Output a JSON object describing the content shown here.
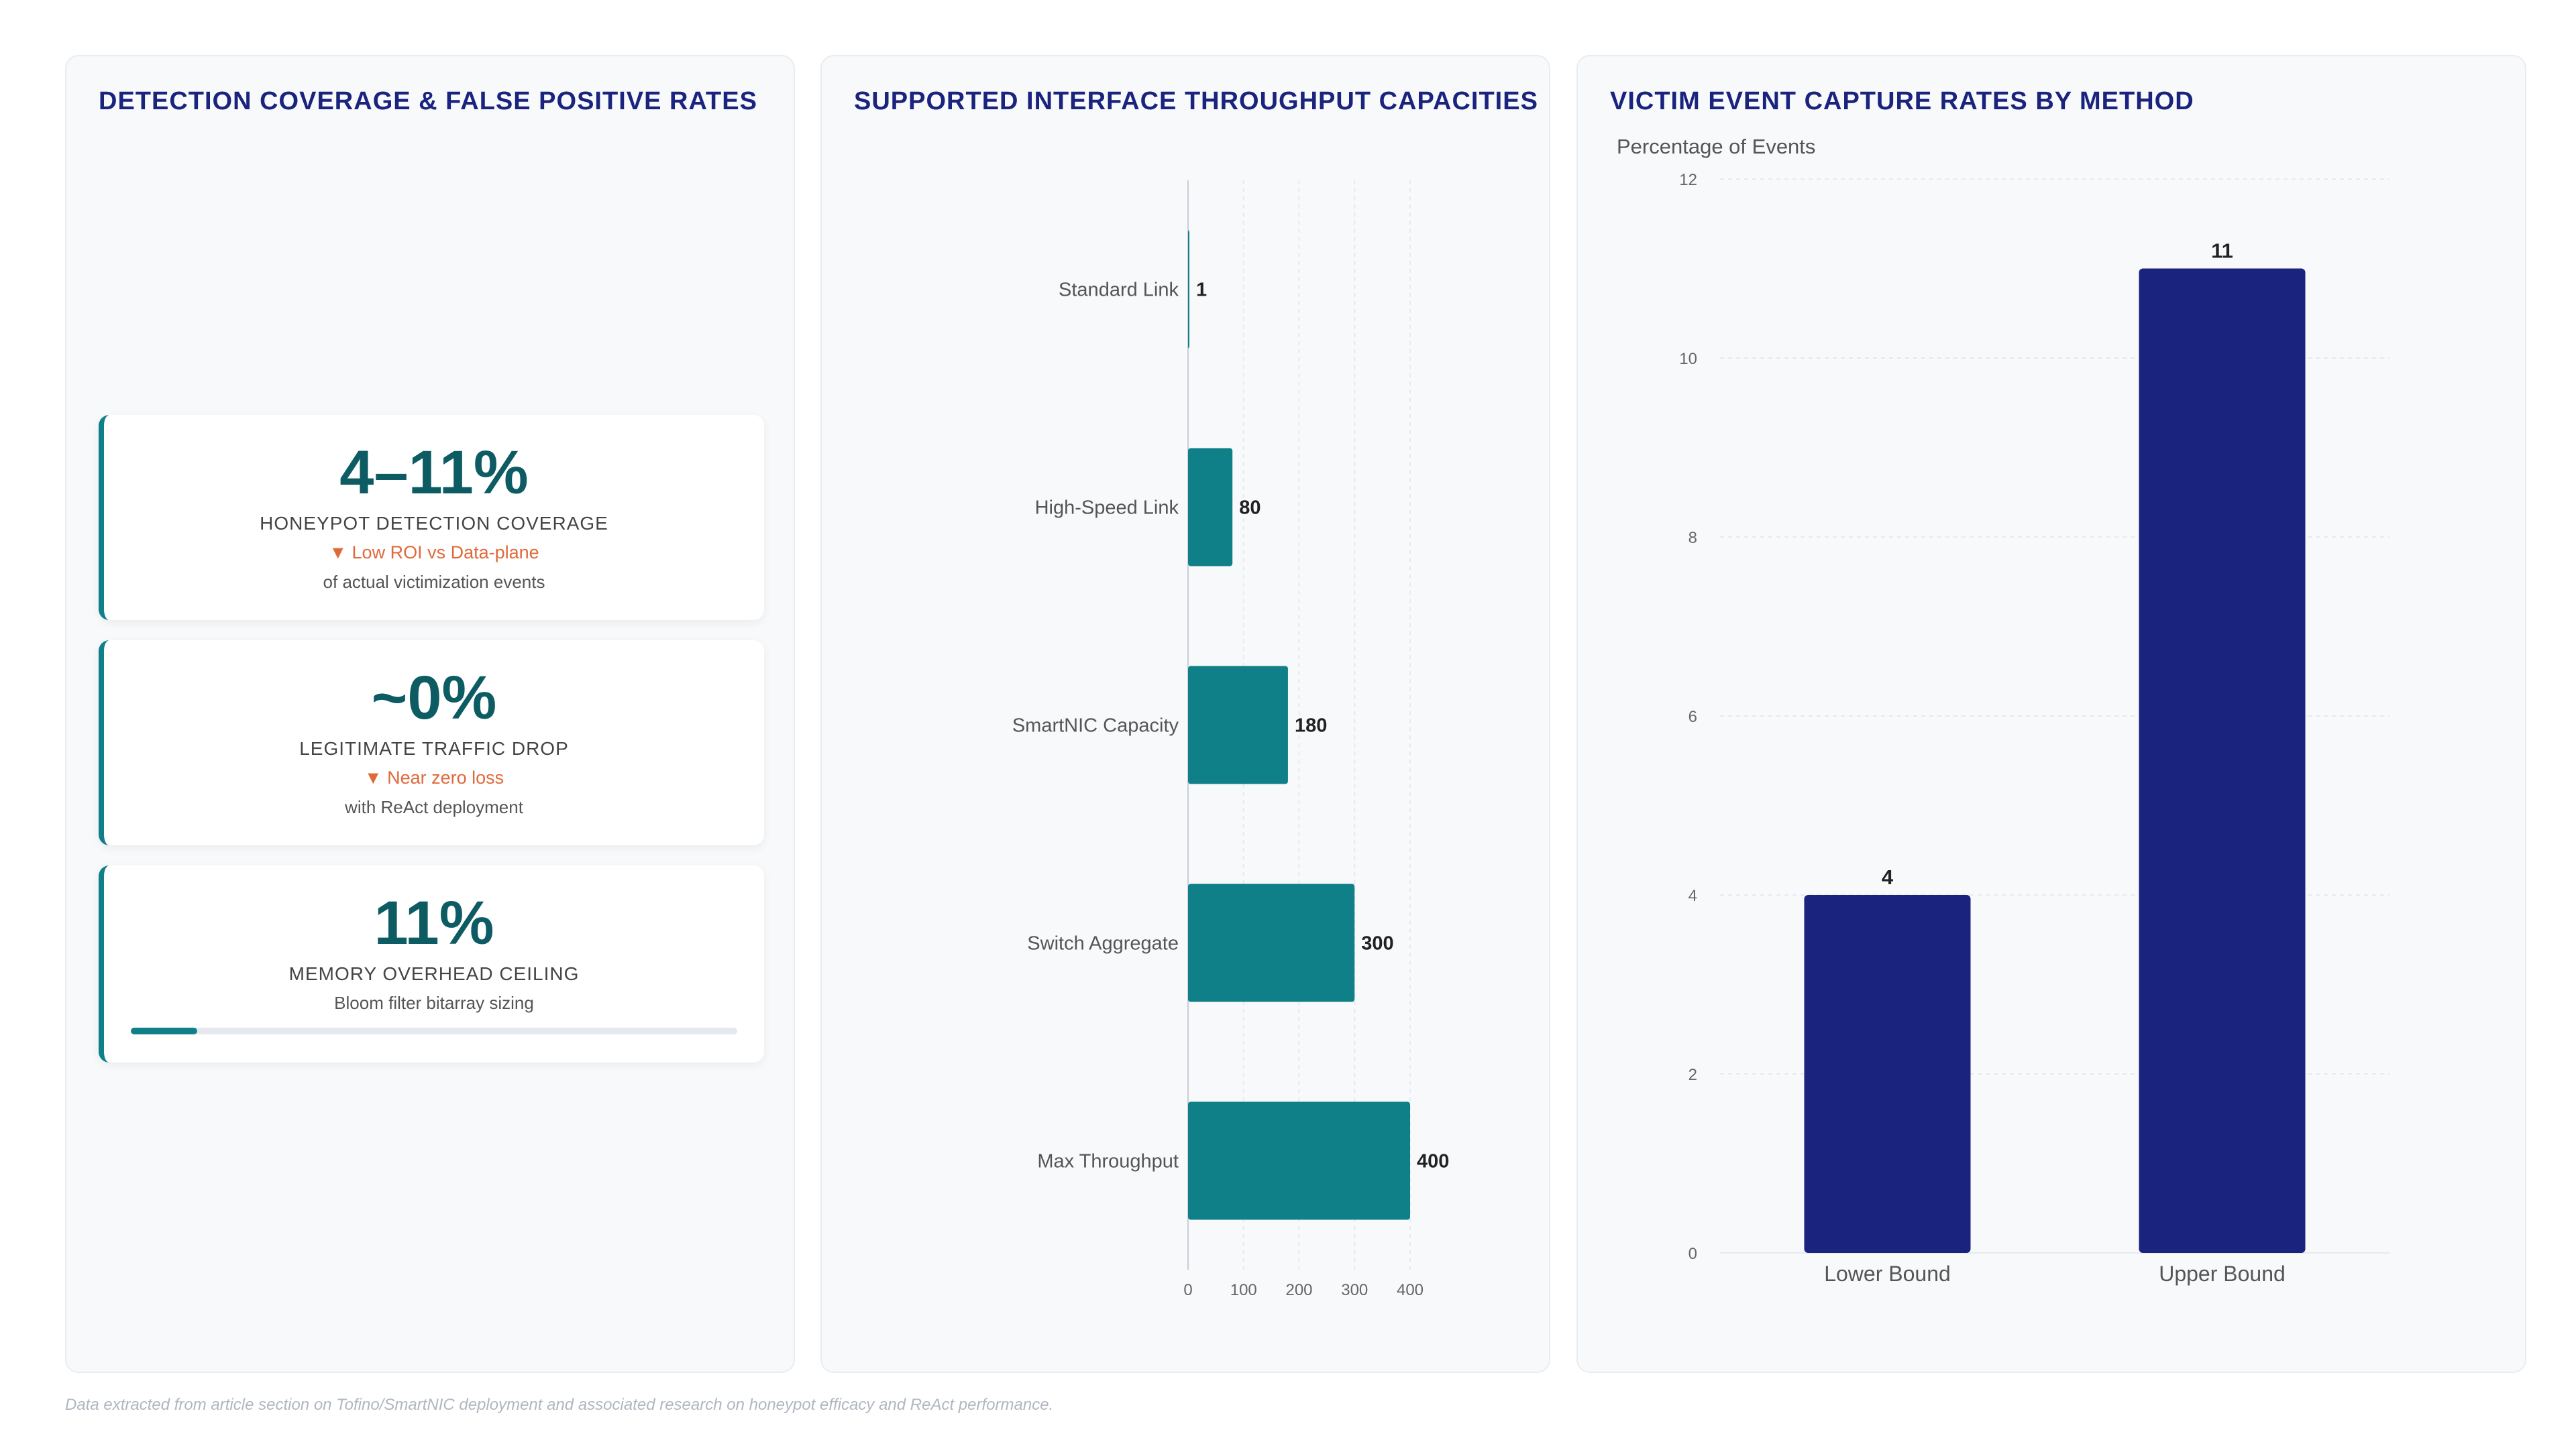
{
  "panels": {
    "kpi_title": "DETECTION COVERAGE & FALSE POSITIVE RATES",
    "throughput_title": "SUPPORTED INTERFACE THROUGHPUT CAPACITIES",
    "capture_title": "VICTIM EVENT CAPTURE RATES BY METHOD"
  },
  "kpis": [
    {
      "value": "4–11%",
      "label": "HONEYPOT DETECTION COVERAGE",
      "trend": "▼ Low ROI vs Data-plane",
      "sub": "of actual victimization events"
    },
    {
      "value": "~0%",
      "label": "LEGITIMATE TRAFFIC DROP",
      "trend": "▼ Near zero loss",
      "sub": "with ReAct deployment"
    },
    {
      "value": "11%",
      "label": "MEMORY OVERHEAD CEILING",
      "sub": "Bloom filter bitarray sizing",
      "progress": 0.11
    }
  ],
  "footnote": "Data extracted from article section on Tofino/SmartNIC deployment and associated research on honeypot efficacy and ReAct performance.",
  "colors": {
    "teal": "#0f8088",
    "navy": "#1a237e",
    "axis": "#c9ced6",
    "grid": "#e6e9ef"
  },
  "chart_data": [
    {
      "type": "bar",
      "orientation": "horizontal",
      "categories": [
        "Standard Link",
        "High-Speed Link",
        "SmartNIC Capacity",
        "Switch Aggregate",
        "Max Throughput"
      ],
      "values": [
        1,
        80,
        180,
        300,
        400
      ],
      "xlim": [
        0,
        400
      ],
      "xticks": [
        0,
        100,
        200,
        300,
        400
      ],
      "grid": true
    },
    {
      "type": "bar",
      "categories": [
        "Lower Bound",
        "Upper Bound"
      ],
      "values": [
        4,
        11
      ],
      "ylabel": "Percentage of Events",
      "ylim": [
        0,
        12
      ],
      "yticks": [
        0,
        2,
        4,
        6,
        8,
        10,
        12
      ],
      "grid": true
    }
  ]
}
